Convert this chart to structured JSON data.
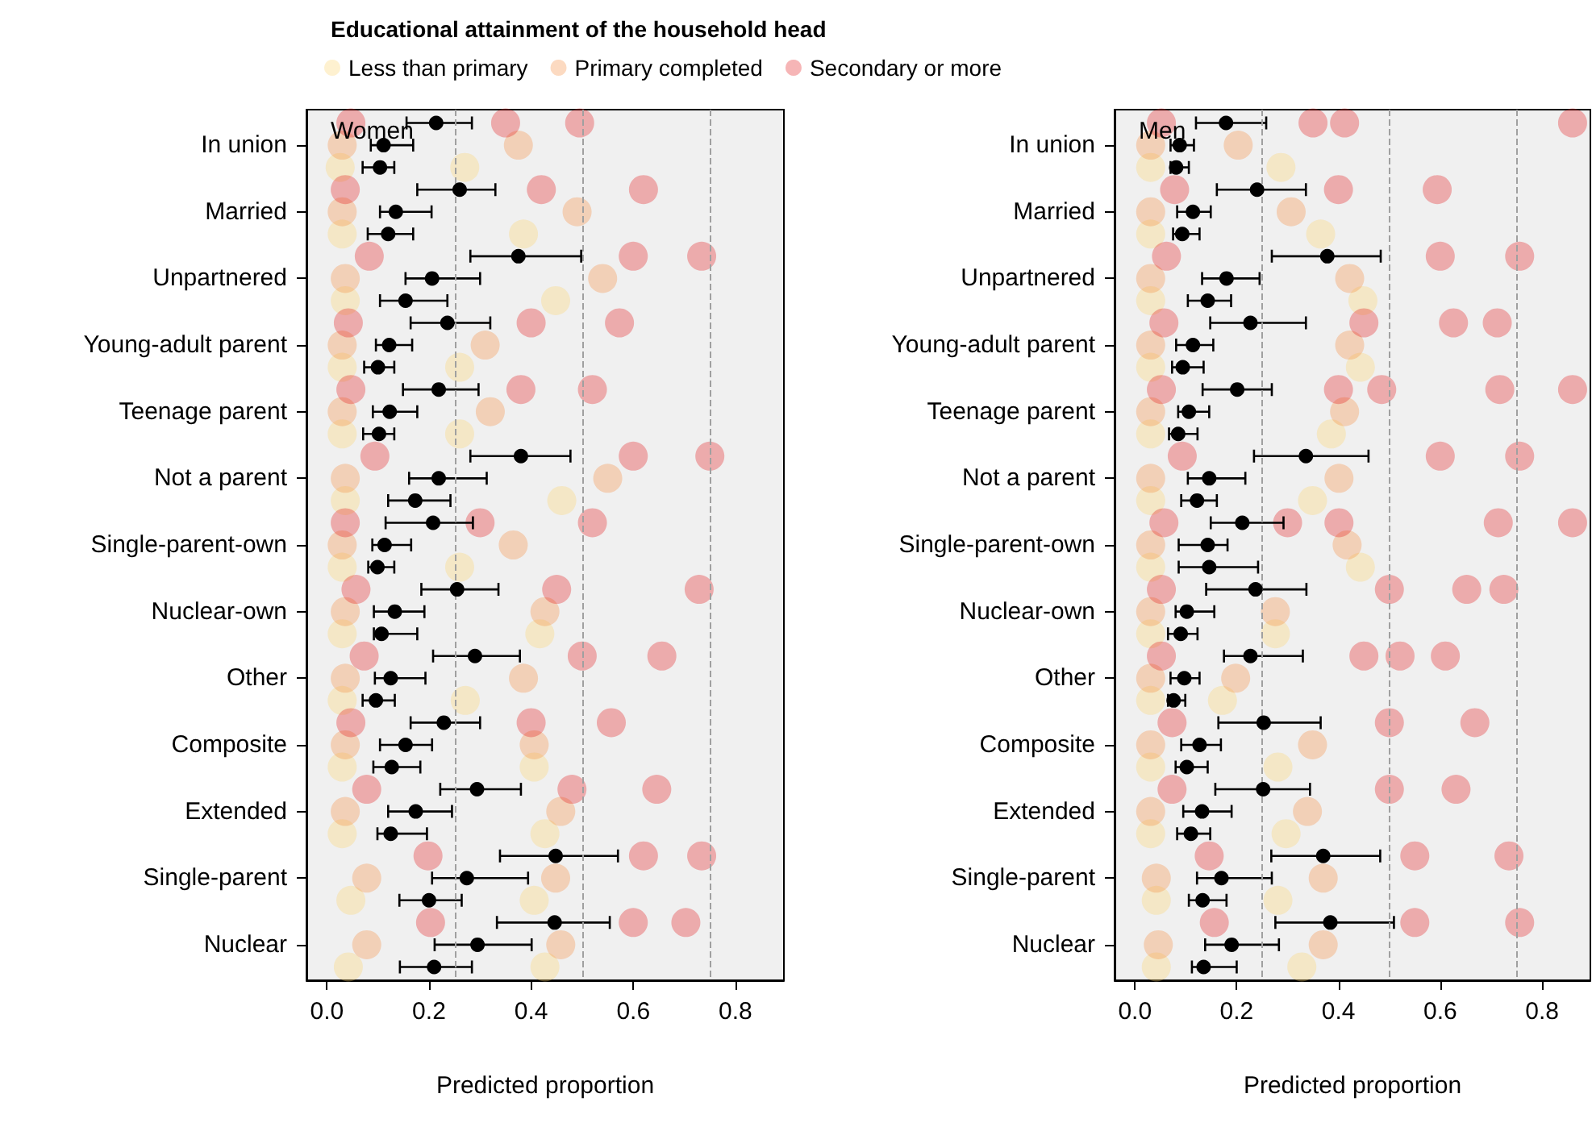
{
  "chart_data": [
    {
      "type": "scatter",
      "title": "Women",
      "xlabel": "Predicted proportion",
      "legend_title": "Educational attainment of the household head",
      "legend": "top",
      "orientation": "horizontal",
      "marker": "circle",
      "grid": false,
      "categories": [
        null,
        "In union",
        null,
        null,
        "Married",
        null,
        null,
        "Unpartnered",
        null,
        null,
        "Young-adult parent",
        null,
        null,
        "Teenage parent",
        null,
        null,
        "Not a parent",
        null,
        null,
        "Single-parent-own",
        null,
        null,
        "Nuclear-own",
        null,
        null,
        "Other",
        null,
        null,
        "Composite",
        null,
        null,
        "Extended",
        null,
        null,
        "Single-parent",
        null,
        null,
        "Nuclear",
        null
      ],
      "xlim": [
        -0.04,
        0.895
      ],
      "xticks": [
        {
          "value": 0,
          "label": "0.0"
        },
        {
          "value": 0.2,
          "label": "0.2"
        },
        {
          "value": 0.4,
          "label": "0.4"
        },
        {
          "value": 0.6,
          "label": "0.6"
        },
        {
          "value": 0.8,
          "label": "0.8"
        }
      ],
      "ref_lines": [
        {
          "axis": "x",
          "value": 0.25,
          "color": "#a0a0a0",
          "line_style": "dashed"
        },
        {
          "axis": "x",
          "value": 0.5,
          "color": "#a0a0a0",
          "line_style": "dashed"
        },
        {
          "axis": "x",
          "value": 0.75,
          "color": "#a0a0a0",
          "line_style": "dashed"
        }
      ],
      "series": [
        {
          "name": "Less than primary",
          "color": "#fdd26e",
          "values": [
            null,
            null,
            0.026,
            null,
            null,
            0.03,
            null,
            null,
            0.036,
            null,
            null,
            0.03,
            null,
            null,
            0.03,
            null,
            null,
            0.036,
            null,
            null,
            0.03,
            null,
            null,
            0.03,
            null,
            null,
            0.03,
            null,
            null,
            0.03,
            null,
            null,
            0.03,
            null,
            null,
            0.047,
            null,
            null,
            0.042
          ]
        },
        {
          "color": "#fdd26e",
          "values": [
            null,
            null,
            0.27,
            null,
            null,
            0.385,
            null,
            null,
            0.448,
            null,
            null,
            0.26,
            null,
            null,
            0.26,
            null,
            null,
            0.46,
            null,
            null,
            0.26,
            null,
            null,
            0.417,
            null,
            null,
            0.271,
            null,
            null,
            0.406,
            null,
            null,
            0.427,
            null,
            null,
            0.406,
            null,
            null,
            0.427
          ]
        },
        {
          "name": "Primary completed",
          "color": "#f78d3d",
          "values": [
            null,
            0.03,
            null,
            null,
            0.03,
            null,
            null,
            0.036,
            null,
            null,
            0.03,
            null,
            null,
            0.03,
            null,
            null,
            0.036,
            null,
            null,
            0.03,
            null,
            null,
            0.036,
            null,
            null,
            0.036,
            null,
            null,
            0.036,
            null,
            null,
            0.036,
            null,
            null,
            0.078,
            null,
            null,
            0.078,
            null
          ]
        },
        {
          "color": "#f78d3d",
          "values": [
            null,
            0.375,
            null,
            null,
            0.49,
            null,
            null,
            0.54,
            null,
            null,
            0.31,
            null,
            null,
            0.32,
            null,
            null,
            0.55,
            null,
            null,
            0.365,
            null,
            null,
            0.427,
            null,
            null,
            0.385,
            null,
            null,
            0.406,
            null,
            null,
            0.458,
            null,
            null,
            0.448,
            null,
            null,
            0.458,
            null
          ]
        },
        {
          "name": "Secondary or more",
          "color": "#e31a1c",
          "values": [
            0.047,
            null,
            null,
            0.036,
            null,
            null,
            0.083,
            null,
            null,
            0.042,
            null,
            null,
            0.047,
            null,
            null,
            0.094,
            null,
            null,
            0.036,
            null,
            null,
            0.057,
            null,
            null,
            0.073,
            null,
            null,
            0.047,
            null,
            null,
            0.078,
            null,
            null,
            0.198,
            null,
            null,
            0.203,
            null,
            null
          ]
        },
        {
          "color": "#e31a1c",
          "values": [
            0.35,
            null,
            null,
            0.42,
            null,
            null,
            0.6,
            null,
            null,
            0.4,
            null,
            null,
            0.38,
            null,
            null,
            0.6,
            null,
            null,
            0.3,
            null,
            null,
            0.45,
            null,
            null,
            0.5,
            null,
            null,
            0.4,
            null,
            null,
            0.48,
            null,
            null,
            0.62,
            null,
            null,
            0.6,
            null,
            null
          ]
        },
        {
          "color": "#e31a1c",
          "values": [
            0.495,
            null,
            null,
            0.62,
            null,
            null,
            0.734,
            null,
            null,
            0.573,
            null,
            null,
            0.52,
            null,
            null,
            0.75,
            null,
            null,
            0.52,
            null,
            null,
            0.729,
            null,
            null,
            0.656,
            null,
            null,
            0.557,
            null,
            null,
            0.646,
            null,
            null,
            0.734,
            null,
            null,
            0.703,
            null,
            null
          ]
        },
        {
          "color": "#000000",
          "values": [
            null,
            null,
            0.104,
            null,
            null,
            0.12,
            null,
            null,
            0.154,
            null,
            null,
            0.1,
            null,
            null,
            0.102,
            null,
            null,
            0.173,
            null,
            null,
            0.099,
            null,
            null,
            0.107,
            null,
            null,
            0.096,
            null,
            null,
            0.127,
            null,
            null,
            0.125,
            null,
            null,
            0.2,
            null,
            null,
            0.21
          ],
          "errors": [
            null,
            null,
            [
              0.07,
              0.132
            ],
            null,
            null,
            [
              0.08,
              0.169
            ],
            null,
            null,
            [
              0.104,
              0.236
            ],
            null,
            null,
            [
              0.073,
              0.132
            ],
            null,
            null,
            [
              0.071,
              0.132
            ],
            null,
            null,
            [
              0.12,
              0.242
            ],
            null,
            null,
            [
              0.081,
              0.132
            ],
            null,
            null,
            [
              0.092,
              0.177
            ],
            null,
            null,
            [
              0.07,
              0.133
            ],
            null,
            null,
            [
              0.091,
              0.183
            ],
            null,
            null,
            [
              0.099,
              0.196
            ],
            null,
            null,
            [
              0.142,
              0.264
            ],
            null,
            null,
            [
              0.143,
              0.284
            ]
          ]
        },
        {
          "color": "#000000",
          "values": [
            null,
            0.111,
            null,
            null,
            0.135,
            null,
            null,
            0.206,
            null,
            null,
            0.122,
            null,
            null,
            0.123,
            null,
            null,
            0.219,
            null,
            null,
            0.113,
            null,
            null,
            0.133,
            null,
            null,
            0.125,
            null,
            null,
            0.154,
            null,
            null,
            0.174,
            null,
            null,
            0.274,
            null,
            null,
            0.295,
            null
          ],
          "errors": [
            null,
            [
              0.086,
              0.169
            ],
            null,
            null,
            [
              0.104,
              0.205
            ],
            null,
            null,
            [
              0.154,
              0.3
            ],
            null,
            null,
            [
              0.096,
              0.167
            ],
            null,
            null,
            [
              0.09,
              0.177
            ],
            null,
            null,
            [
              0.161,
              0.313
            ],
            null,
            null,
            [
              0.089,
              0.165
            ],
            null,
            null,
            [
              0.092,
              0.191
            ],
            null,
            null,
            [
              0.094,
              0.193
            ],
            null,
            null,
            [
              0.104,
              0.206
            ],
            null,
            null,
            [
              0.12,
              0.245
            ],
            null,
            null,
            [
              0.206,
              0.394
            ],
            null,
            null,
            [
              0.211,
              0.401
            ],
            null
          ]
        },
        {
          "color": "#000000",
          "values": [
            0.214,
            null,
            null,
            0.26,
            null,
            null,
            0.375,
            null,
            null,
            0.236,
            null,
            null,
            0.219,
            null,
            null,
            0.38,
            null,
            null,
            0.208,
            null,
            null,
            0.255,
            null,
            null,
            0.29,
            null,
            null,
            0.229,
            null,
            null,
            0.294,
            null,
            null,
            0.448,
            null,
            null,
            0.446,
            null,
            null
          ],
          "errors": [
            [
              0.156,
              0.284
            ],
            null,
            null,
            [
              0.177,
              0.33
            ],
            null,
            null,
            [
              0.281,
              0.498
            ],
            null,
            null,
            [
              0.164,
              0.32
            ],
            null,
            null,
            [
              0.149,
              0.297
            ],
            null,
            null,
            [
              0.281,
              0.477
            ],
            null,
            null,
            [
              0.115,
              0.286
            ],
            null,
            null,
            [
              0.185,
              0.336
            ],
            null,
            null,
            [
              0.208,
              0.378
            ],
            null,
            null,
            [
              0.164,
              0.3
            ],
            null,
            null,
            [
              0.222,
              0.38
            ],
            null,
            null,
            [
              0.339,
              0.57
            ],
            null,
            null,
            [
              0.333,
              0.554
            ],
            null,
            null
          ]
        }
      ]
    },
    {
      "type": "scatter",
      "title": "Men",
      "xlabel": "Predicted proportion",
      "orientation": "horizontal",
      "marker": "circle",
      "grid": false,
      "categories": [
        null,
        "In union",
        null,
        null,
        "Married",
        null,
        null,
        "Unpartnered",
        null,
        null,
        "Young-adult parent",
        null,
        null,
        "Teenage parent",
        null,
        null,
        "Not a parent",
        null,
        null,
        "Single-parent-own",
        null,
        null,
        "Nuclear-own",
        null,
        null,
        "Other",
        null,
        null,
        "Composite",
        null,
        null,
        "Extended",
        null,
        null,
        "Single-parent",
        null,
        null,
        "Nuclear",
        null
      ],
      "xlim": [
        -0.04,
        0.895
      ],
      "xticks": [
        {
          "value": 0,
          "label": "0.0"
        },
        {
          "value": 0.2,
          "label": "0.2"
        },
        {
          "value": 0.4,
          "label": "0.4"
        },
        {
          "value": 0.6,
          "label": "0.6"
        },
        {
          "value": 0.8,
          "label": "0.8"
        }
      ],
      "ref_lines": [
        {
          "axis": "x",
          "value": 0.25,
          "color": "#a0a0a0",
          "line_style": "dashed"
        },
        {
          "axis": "x",
          "value": 0.5,
          "color": "#a0a0a0",
          "line_style": "dashed"
        },
        {
          "axis": "x",
          "value": 0.75,
          "color": "#a0a0a0",
          "line_style": "dashed"
        }
      ],
      "series": [
        {
          "color": "#fdd26e",
          "values": [
            null,
            null,
            0.031,
            null,
            null,
            0.031,
            null,
            null,
            0.031,
            null,
            null,
            0.031,
            null,
            null,
            0.031,
            null,
            null,
            0.031,
            null,
            null,
            0.031,
            null,
            null,
            0.031,
            null,
            null,
            0.031,
            null,
            null,
            0.031,
            null,
            null,
            0.031,
            null,
            null,
            0.042,
            null,
            null,
            0.042
          ]
        },
        {
          "color": "#fdd26e",
          "values": [
            null,
            null,
            0.287,
            null,
            null,
            0.365,
            null,
            null,
            0.448,
            null,
            null,
            0.443,
            null,
            null,
            0.386,
            null,
            null,
            0.349,
            null,
            null,
            0.443,
            null,
            null,
            0.276,
            null,
            null,
            0.172,
            null,
            null,
            0.281,
            null,
            null,
            0.297,
            null,
            null,
            0.281,
            null,
            null,
            0.328
          ]
        },
        {
          "color": "#f78d3d",
          "values": [
            null,
            0.031,
            null,
            null,
            0.031,
            null,
            null,
            0.031,
            null,
            null,
            0.031,
            null,
            null,
            0.031,
            null,
            null,
            0.031,
            null,
            null,
            0.031,
            null,
            null,
            0.031,
            null,
            null,
            0.031,
            null,
            null,
            0.031,
            null,
            null,
            0.031,
            null,
            null,
            0.042,
            null,
            null,
            0.046,
            null
          ]
        },
        {
          "color": "#f78d3d",
          "values": [
            null,
            0.203,
            null,
            null,
            0.307,
            null,
            null,
            0.422,
            null,
            null,
            0.422,
            null,
            null,
            0.412,
            null,
            null,
            0.401,
            null,
            null,
            0.417,
            null,
            null,
            0.276,
            null,
            null,
            0.198,
            null,
            null,
            0.349,
            null,
            null,
            0.339,
            null,
            null,
            0.37,
            null,
            null,
            0.37,
            null
          ]
        },
        {
          "color": "#e31a1c",
          "values": [
            0.052,
            null,
            null,
            0.078,
            null,
            null,
            0.062,
            null,
            null,
            0.057,
            null,
            null,
            0.052,
            null,
            null,
            0.093,
            null,
            null,
            0.057,
            null,
            null,
            0.052,
            null,
            null,
            0.052,
            null,
            null,
            0.073,
            null,
            null,
            0.073,
            null,
            null,
            0.146,
            null,
            null,
            0.156,
            null,
            null
          ]
        },
        {
          "color": "#e31a1c",
          "values": [
            0.35,
            null,
            null,
            0.4,
            null,
            null,
            0.6,
            null,
            null,
            0.45,
            null,
            null,
            0.4,
            null,
            null,
            0.6,
            null,
            null,
            0.3,
            null,
            null,
            0.5,
            null,
            null,
            0.45,
            null,
            null,
            0.5,
            null,
            null,
            0.5,
            null,
            null,
            0.55,
            null,
            null,
            0.55,
            null,
            null
          ]
        },
        {
          "color": "#e31a1c",
          "values": [
            0.412,
            null,
            null,
            0.594,
            null,
            null,
            0.756,
            null,
            null,
            0.626,
            null,
            null,
            0.485,
            null,
            null,
            0.756,
            null,
            null,
            0.401,
            null,
            null,
            0.652,
            null,
            null,
            0.521,
            null,
            null,
            0.668,
            null,
            null,
            0.631,
            null,
            null,
            0.735,
            null,
            null,
            0.756,
            null,
            null
          ]
        },
        {
          "color": "#e31a1c",
          "values": [
            0.86,
            null,
            null,
            null,
            null,
            null,
            null,
            null,
            null,
            0.712,
            null,
            null,
            0.717,
            null,
            null,
            null,
            null,
            null,
            0.714,
            null,
            null,
            0.725,
            null,
            null,
            0.61,
            null,
            null,
            null,
            null,
            null,
            null,
            null,
            null,
            null,
            null,
            null,
            null,
            null,
            null
          ]
        },
        {
          "color": "#e31a1c",
          "values": [
            null,
            null,
            null,
            null,
            null,
            null,
            null,
            null,
            null,
            null,
            null,
            null,
            0.86,
            null,
            null,
            null,
            null,
            null,
            0.86,
            null,
            null,
            null,
            null,
            null,
            null,
            null,
            null,
            null,
            null,
            null,
            null,
            null,
            null,
            null,
            null,
            null,
            null,
            null,
            null
          ]
        },
        {
          "color": "#000000",
          "values": [
            null,
            null,
            0.081,
            null,
            null,
            0.093,
            null,
            null,
            0.143,
            null,
            null,
            0.094,
            null,
            null,
            0.085,
            null,
            null,
            0.122,
            null,
            null,
            0.146,
            null,
            null,
            0.09,
            null,
            null,
            0.076,
            null,
            null,
            0.102,
            null,
            null,
            0.11,
            null,
            null,
            0.133,
            null,
            null,
            0.135
          ],
          "errors": [
            null,
            null,
            [
              0.07,
              0.106
            ],
            null,
            null,
            [
              0.075,
              0.127
            ],
            null,
            null,
            [
              0.104,
              0.189
            ],
            null,
            null,
            [
              0.073,
              0.135
            ],
            null,
            null,
            [
              0.067,
              0.123
            ],
            null,
            null,
            [
              0.091,
              0.161
            ],
            null,
            null,
            [
              0.086,
              0.242
            ],
            null,
            null,
            [
              0.065,
              0.123
            ],
            null,
            null,
            [
              0.065,
              0.099
            ],
            null,
            null,
            [
              0.08,
              0.143
            ],
            null,
            null,
            [
              0.083,
              0.148
            ],
            null,
            null,
            [
              0.106,
              0.18
            ],
            null,
            null,
            [
              0.112,
              0.2
            ]
          ]
        },
        {
          "color": "#000000",
          "values": [
            null,
            0.088,
            null,
            null,
            0.114,
            null,
            null,
            0.18,
            null,
            null,
            0.114,
            null,
            null,
            0.106,
            null,
            null,
            0.146,
            null,
            null,
            0.143,
            null,
            null,
            0.102,
            null,
            null,
            0.097,
            null,
            null,
            0.127,
            null,
            null,
            0.132,
            null,
            null,
            0.17,
            null,
            null,
            0.19,
            null
          ],
          "errors": [
            null,
            [
              0.07,
              0.116
            ],
            null,
            null,
            [
              0.083,
              0.149
            ],
            null,
            null,
            [
              0.132,
              0.245
            ],
            null,
            null,
            [
              0.081,
              0.154
            ],
            null,
            null,
            [
              0.085,
              0.146
            ],
            null,
            null,
            [
              0.104,
              0.217
            ],
            null,
            null,
            [
              0.086,
              0.182
            ],
            null,
            null,
            [
              0.08,
              0.156
            ],
            null,
            null,
            [
              0.07,
              0.127
            ],
            null,
            null,
            [
              0.091,
              0.169
            ],
            null,
            null,
            [
              0.095,
              0.19
            ],
            null,
            null,
            [
              0.122,
              0.269
            ],
            null,
            null,
            [
              0.138,
              0.283
            ],
            null
          ]
        },
        {
          "color": "#000000",
          "values": [
            0.179,
            null,
            null,
            0.24,
            null,
            null,
            0.378,
            null,
            null,
            0.227,
            null,
            null,
            0.201,
            null,
            null,
            0.336,
            null,
            null,
            0.211,
            null,
            null,
            0.237,
            null,
            null,
            0.227,
            null,
            null,
            0.253,
            null,
            null,
            0.252,
            null,
            null,
            0.37,
            null,
            null,
            0.384,
            null,
            null
          ],
          "errors": [
            [
              0.12,
              0.258
            ],
            null,
            null,
            [
              0.161,
              0.336
            ],
            null,
            null,
            [
              0.269,
              0.483
            ],
            null,
            null,
            [
              0.148,
              0.336
            ],
            null,
            null,
            [
              0.133,
              0.269
            ],
            null,
            null,
            [
              0.234,
              0.459
            ],
            null,
            null,
            [
              0.149,
              0.292
            ],
            null,
            null,
            [
              0.14,
              0.337
            ],
            null,
            null,
            [
              0.175,
              0.33
            ],
            null,
            null,
            [
              0.164,
              0.365
            ],
            null,
            null,
            [
              0.158,
              0.344
            ],
            null,
            null,
            [
              0.268,
              0.482
            ],
            null,
            null,
            [
              0.276,
              0.509
            ],
            null,
            null
          ]
        }
      ]
    }
  ]
}
